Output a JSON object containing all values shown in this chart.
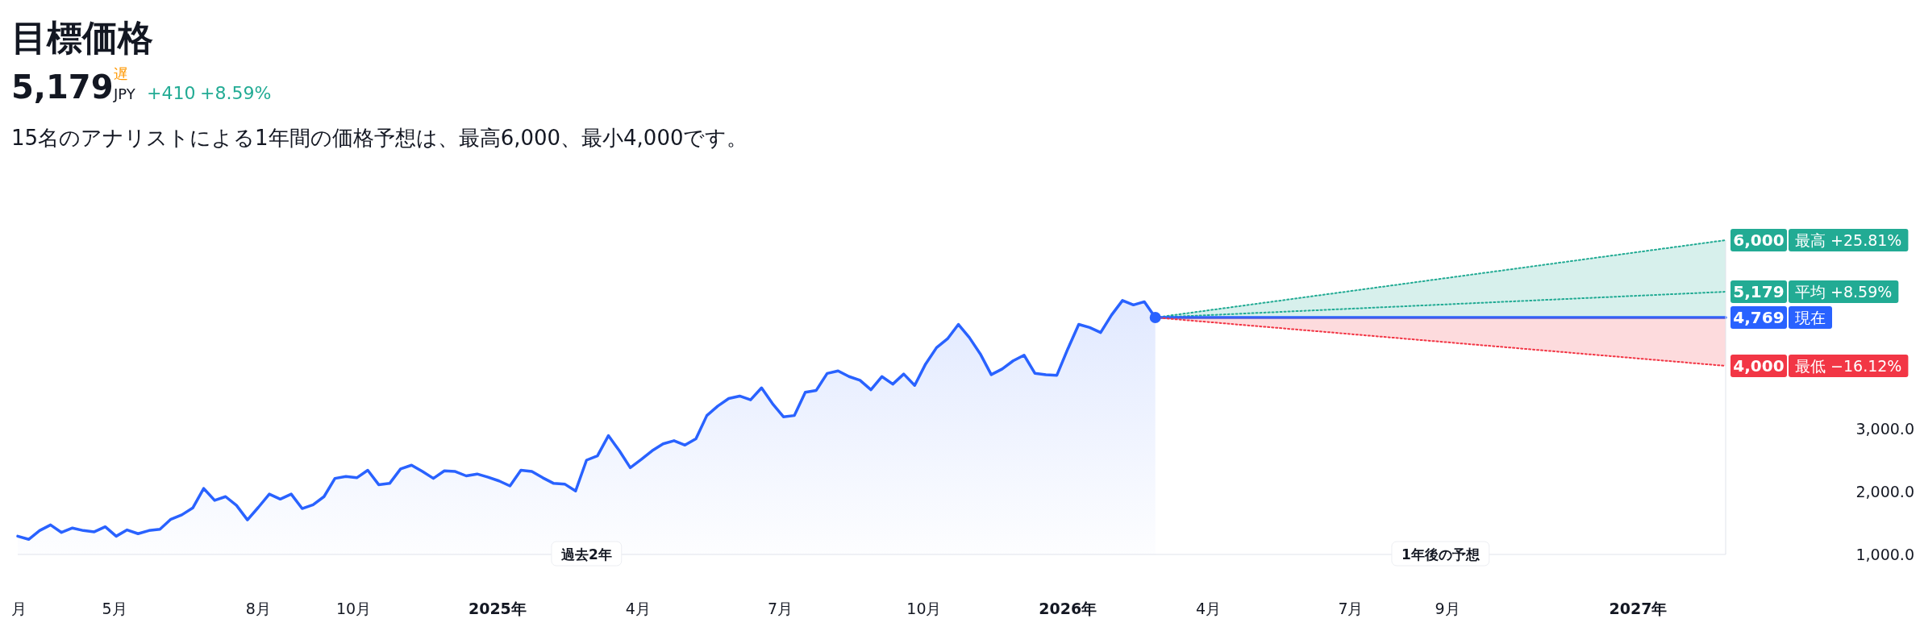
{
  "chart_data": {
    "type": "area",
    "title": "目標価格",
    "subtitle": "15名のアナリストによる1年間の価格予想は、最高6,000、最小4,000です。",
    "annotations": [
      "5,179",
      "遅",
      "JPY",
      "+410",
      "+8.59%",
      "過去2年",
      "1年後の予想"
    ],
    "xticks": [
      {
        "value": "2024-03-01",
        "label": "月"
      },
      {
        "value": "2024-05-01",
        "label": "5月"
      },
      {
        "value": "2024-08-01",
        "label": "8月"
      },
      {
        "value": "2024-10-01",
        "label": "10月"
      },
      {
        "value": "2025-01-01",
        "label": "2025年"
      },
      {
        "value": "2025-04-01",
        "label": "4月"
      },
      {
        "value": "2025-07-01",
        "label": "7月"
      },
      {
        "value": "2025-10-01",
        "label": "10月"
      },
      {
        "value": "2026-01-01",
        "label": "2026年"
      },
      {
        "value": "2026-04-01",
        "label": "4月"
      },
      {
        "value": "2026-07-01",
        "label": "7月"
      },
      {
        "value": "2026-09-01",
        "label": "9月"
      },
      {
        "value": "2027-01-01",
        "label": "2027年"
      }
    ],
    "xlim": [
      "2024-02-29",
      "2027-02-26"
    ],
    "ylim": [
      1000,
      6000
    ],
    "yticks": [
      {
        "value": 1000,
        "label": "1,000.0"
      },
      {
        "value": 2000,
        "label": "2,000.0"
      },
      {
        "value": 3000,
        "label": "3,000.0"
      }
    ],
    "grid": false,
    "legend": "right",
    "series": [
      {
        "color": "#2962ff",
        "line_style": "solid",
        "x": [
          "2024-02-29",
          "2024-03-07",
          "2024-03-14",
          "2024-03-21",
          "2024-03-28",
          "2024-04-04",
          "2024-04-11",
          "2024-04-18",
          "2024-04-25",
          "2024-05-02",
          "2024-05-09",
          "2024-05-16",
          "2024-05-23",
          "2024-05-30",
          "2024-06-06",
          "2024-06-13",
          "2024-06-20",
          "2024-06-27",
          "2024-07-04",
          "2024-07-11",
          "2024-07-18",
          "2024-07-25",
          "2024-08-01",
          "2024-08-08",
          "2024-08-15",
          "2024-08-22",
          "2024-08-29",
          "2024-09-05",
          "2024-09-12",
          "2024-09-19",
          "2024-09-26",
          "2024-10-03",
          "2024-10-10",
          "2024-10-17",
          "2024-10-24",
          "2024-10-31",
          "2024-11-07",
          "2024-11-14",
          "2024-11-21",
          "2024-11-28",
          "2024-12-05",
          "2024-12-12",
          "2024-12-19",
          "2024-12-26",
          "2025-01-02",
          "2025-01-09",
          "2025-01-16",
          "2025-01-23",
          "2025-01-30",
          "2025-02-06",
          "2025-02-13",
          "2025-02-20",
          "2025-02-27",
          "2025-03-06",
          "2025-03-13",
          "2025-03-20",
          "2025-03-27",
          "2025-04-03",
          "2025-04-10",
          "2025-04-17",
          "2025-04-24",
          "2025-05-01",
          "2025-05-08",
          "2025-05-15",
          "2025-05-22",
          "2025-05-29",
          "2025-06-05",
          "2025-06-12",
          "2025-06-19",
          "2025-06-26",
          "2025-07-03",
          "2025-07-10",
          "2025-07-17",
          "2025-07-24",
          "2025-07-31",
          "2025-08-07",
          "2025-08-14",
          "2025-08-21",
          "2025-08-28",
          "2025-09-04",
          "2025-09-11",
          "2025-09-18",
          "2025-09-25",
          "2025-10-02",
          "2025-10-09",
          "2025-10-16",
          "2025-10-23",
          "2025-10-30",
          "2025-11-06",
          "2025-11-13",
          "2025-11-20",
          "2025-11-27",
          "2025-12-04",
          "2025-12-11",
          "2025-12-18",
          "2025-12-25",
          "2026-01-01",
          "2026-01-08",
          "2026-01-15",
          "2026-01-22",
          "2026-01-29",
          "2026-02-05",
          "2026-02-12",
          "2026-02-19",
          "2026-02-26"
        ],
        "values": [
          1290,
          1240,
          1380,
          1470,
          1350,
          1420,
          1380,
          1360,
          1440,
          1290,
          1390,
          1330,
          1380,
          1400,
          1560,
          1630,
          1740,
          2050,
          1860,
          1920,
          1780,
          1550,
          1750,
          1960,
          1880,
          1960,
          1730,
          1790,
          1920,
          2210,
          2240,
          2220,
          2340,
          2110,
          2130,
          2360,
          2420,
          2320,
          2210,
          2330,
          2320,
          2250,
          2280,
          2230,
          2170,
          2090,
          2340,
          2320,
          2220,
          2130,
          2120,
          2010,
          2500,
          2570,
          2890,
          2650,
          2380,
          2510,
          2650,
          2760,
          2810,
          2740,
          2840,
          3210,
          3360,
          3480,
          3520,
          3460,
          3650,
          3400,
          3190,
          3210,
          3580,
          3610,
          3880,
          3920,
          3830,
          3770,
          3620,
          3830,
          3710,
          3870,
          3690,
          4030,
          4290,
          4430,
          4660,
          4450,
          4190,
          3860,
          3950,
          4080,
          4170,
          3880,
          3860,
          3850,
          4270,
          4660,
          4610,
          4530,
          4810,
          5040,
          4970,
          5020,
          4769
        ]
      },
      {
        "type": "line",
        "name": "最高 +25.81%",
        "color": "#22ab94",
        "line_style": "dotted",
        "x": [
          "2026-02-26",
          "2027-02-26"
        ],
        "values": [
          4769,
          6000
        ],
        "lower": [
          4769,
          4769
        ],
        "upper": [
          4769,
          6000
        ],
        "value_labels": [
          null,
          "6,000"
        ]
      },
      {
        "type": "line",
        "name": "平均 +8.59%",
        "color": "#22ab94",
        "line_style": "dotted",
        "x": [
          "2026-02-26",
          "2027-02-26"
        ],
        "values": [
          4769,
          5179
        ],
        "value_labels": [
          null,
          "5,179"
        ]
      },
      {
        "type": "line",
        "name": "現在",
        "color": "#2962ff",
        "line_style": "solid",
        "x": [
          "2026-02-26",
          "2027-02-26"
        ],
        "values": [
          4769,
          4769
        ],
        "value_labels": [
          null,
          "4,769"
        ]
      },
      {
        "type": "line",
        "name": "最低 −16.12%",
        "color": "#f23645",
        "line_style": "dotted",
        "x": [
          "2026-02-26",
          "2027-02-26"
        ],
        "values": [
          4769,
          4000
        ],
        "lower": [
          4769,
          4000
        ],
        "upper": [
          4769,
          4769
        ],
        "value_labels": [
          null,
          "4,000"
        ]
      },
      {
        "type": "scatter",
        "color": "#2962ff",
        "marker": "circle",
        "x": [
          "2026-02-26"
        ],
        "values": [
          4769
        ]
      }
    ]
  }
}
